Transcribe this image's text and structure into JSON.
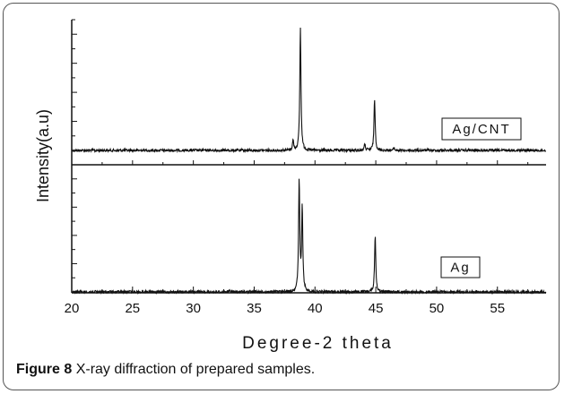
{
  "caption": {
    "label": "Figure 8",
    "text": "X-ray diffraction of prepared samples."
  },
  "chart_data": {
    "type": "line",
    "title": "",
    "xlabel": "Degree-2 theta",
    "ylabel": "Intensity(a.u)",
    "xlim": [
      20,
      59
    ],
    "x_ticks": [
      20,
      25,
      30,
      35,
      40,
      45,
      50,
      55
    ],
    "y_ticks_shown": false,
    "grid": false,
    "layout": "stacked panels, no legend (each series labelled in a box inside its panel)",
    "series": [
      {
        "name": "Ag/CNT",
        "panel": "top",
        "baseline": 0.0,
        "peaks": [
          {
            "x": 38.2,
            "height": 0.08
          },
          {
            "x": 38.8,
            "height": 1.0
          },
          {
            "x": 44.1,
            "height": 0.05
          },
          {
            "x": 44.9,
            "height": 0.42
          },
          {
            "x": 46.5,
            "height": 0.02
          }
        ],
        "ylim": [
          0,
          1.05
        ]
      },
      {
        "name": "Ag",
        "panel": "bottom",
        "baseline": 0.0,
        "peaks": [
          {
            "x": 38.7,
            "height": 0.93
          },
          {
            "x": 38.95,
            "height": 0.69
          },
          {
            "x": 44.95,
            "height": 0.48
          },
          {
            "x": 33.0,
            "height": 0.02
          }
        ],
        "ylim": [
          0,
          1.05
        ]
      }
    ]
  }
}
